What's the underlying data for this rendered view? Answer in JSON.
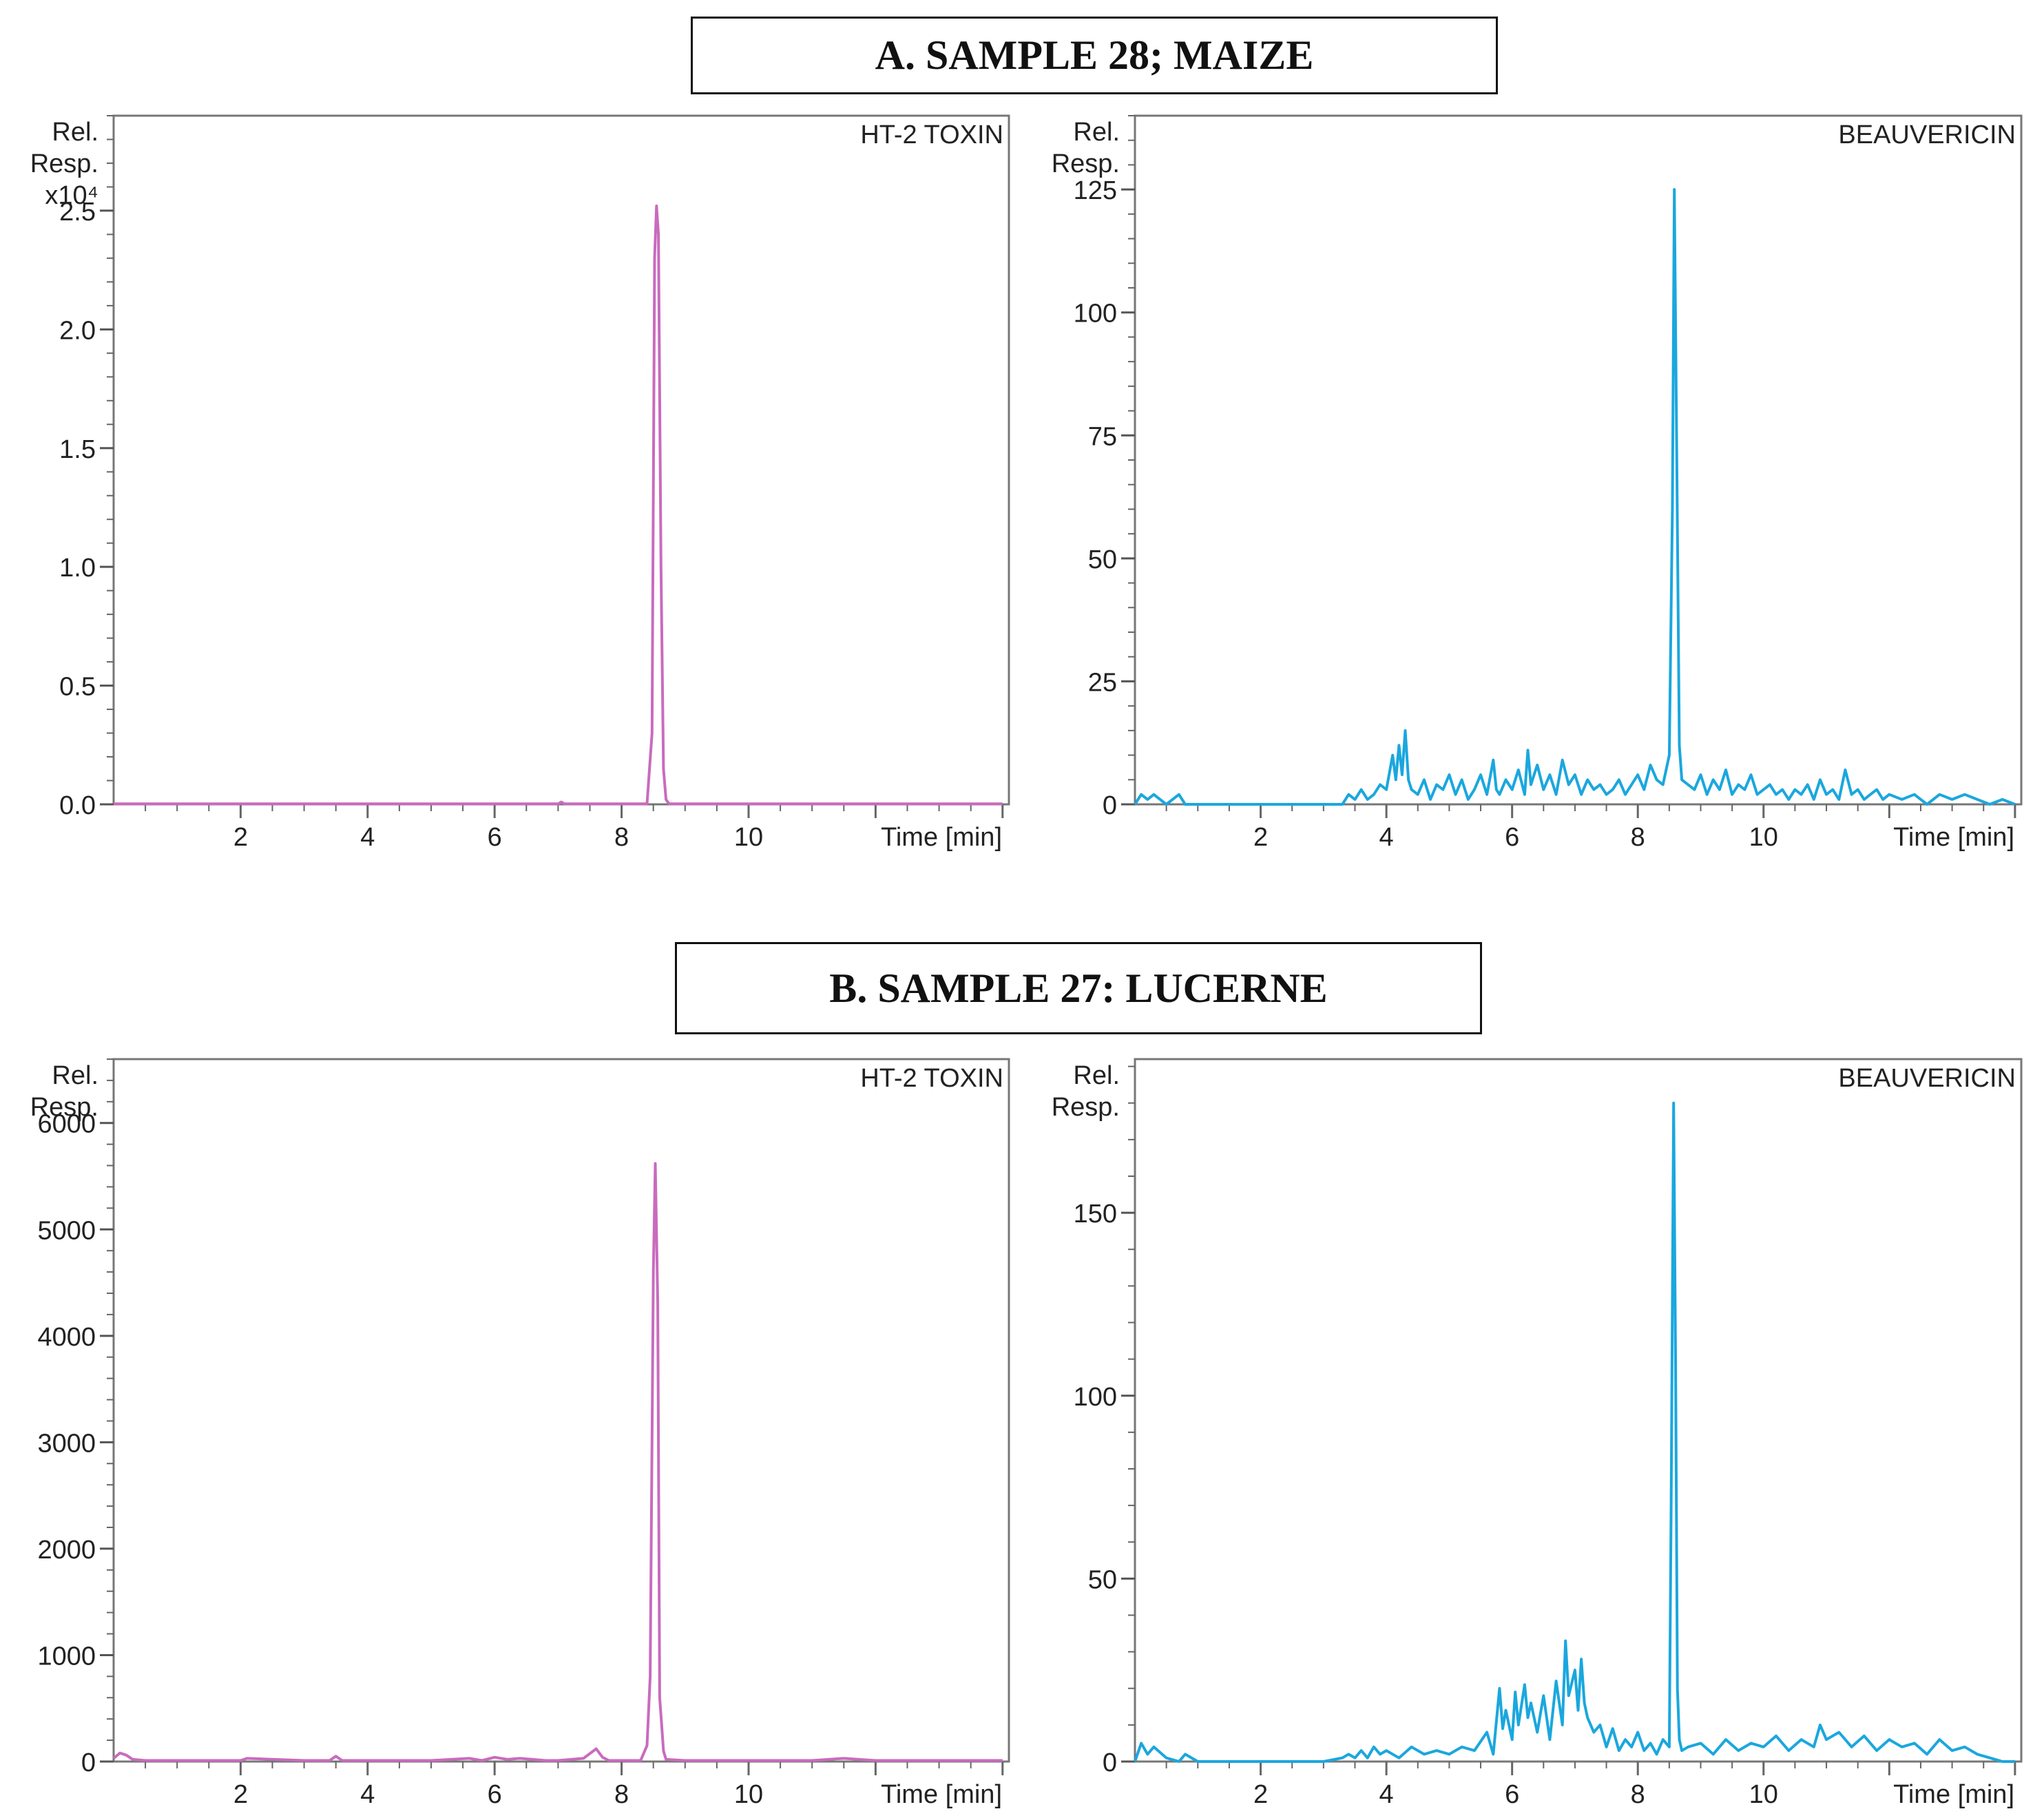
{
  "sections": [
    {
      "title": "A. SAMPLE 28; MAIZE"
    },
    {
      "title": "B. SAMPLE 27: LUCERNE"
    }
  ],
  "chart_data": [
    {
      "type": "line",
      "section": "A",
      "title": "HT-2 TOXIN",
      "ylabel_lines": [
        "Rel.",
        "Resp.",
        "x10⁴"
      ],
      "xlabel": "Time [min]",
      "xlim": [
        0,
        14.1
      ],
      "ylim": [
        0,
        2.9
      ],
      "xticks": [
        2,
        4,
        6,
        8,
        10
      ],
      "yticks": [
        0.0,
        0.5,
        1.0,
        1.5,
        2.0,
        2.5
      ],
      "ytick_labels": [
        "0.0",
        "0.5",
        "1.0",
        "1.5",
        "2.0",
        "2.5"
      ],
      "grid": false,
      "color": "#c96bbd",
      "series": [
        {
          "x": [
            0,
            1,
            2,
            3,
            4,
            5,
            6,
            7,
            7.05,
            7.1,
            8,
            8.4,
            8.48,
            8.52,
            8.55,
            8.58,
            8.62,
            8.66,
            8.7,
            8.75,
            9,
            10,
            11,
            12,
            13,
            14
          ],
          "y": [
            0.002,
            0.002,
            0.002,
            0.002,
            0.002,
            0.002,
            0.002,
            0.002,
            0.01,
            0.002,
            0.002,
            0.002,
            0.3,
            2.3,
            2.52,
            2.4,
            1.0,
            0.15,
            0.02,
            0.002,
            0.002,
            0.002,
            0.002,
            0.002,
            0.002,
            0.002
          ]
        }
      ]
    },
    {
      "type": "line",
      "section": "A",
      "title": "BEAUVERICIN",
      "ylabel_lines": [
        "Rel.",
        "Resp."
      ],
      "xlabel": "Time [min]",
      "xlim": [
        0,
        14.1
      ],
      "ylim": [
        0,
        140
      ],
      "xticks": [
        2,
        4,
        6,
        8,
        10
      ],
      "yticks": [
        0,
        25,
        50,
        75,
        100,
        125
      ],
      "ytick_labels": [
        "0",
        "25",
        "50",
        "75",
        "100",
        "125"
      ],
      "grid": false,
      "color": "#1aa7de",
      "series": [
        {
          "x": [
            0,
            0.1,
            0.2,
            0.3,
            0.5,
            0.7,
            0.8,
            1.0,
            2.0,
            3.0,
            3.3,
            3.4,
            3.5,
            3.6,
            3.7,
            3.8,
            3.9,
            4.0,
            4.1,
            4.15,
            4.2,
            4.25,
            4.3,
            4.35,
            4.4,
            4.5,
            4.6,
            4.7,
            4.8,
            4.9,
            5.0,
            5.1,
            5.2,
            5.3,
            5.4,
            5.5,
            5.6,
            5.7,
            5.75,
            5.8,
            5.9,
            6.0,
            6.1,
            6.2,
            6.25,
            6.3,
            6.4,
            6.5,
            6.6,
            6.7,
            6.8,
            6.9,
            7.0,
            7.1,
            7.2,
            7.3,
            7.4,
            7.5,
            7.6,
            7.7,
            7.8,
            7.9,
            8.0,
            8.1,
            8.2,
            8.3,
            8.4,
            8.5,
            8.55,
            8.58,
            8.62,
            8.66,
            8.7,
            8.8,
            8.9,
            9.0,
            9.1,
            9.2,
            9.3,
            9.4,
            9.5,
            9.6,
            9.7,
            9.8,
            9.9,
            10.0,
            10.1,
            10.2,
            10.3,
            10.4,
            10.5,
            10.6,
            10.7,
            10.8,
            10.9,
            11.0,
            11.1,
            11.2,
            11.3,
            11.4,
            11.5,
            11.6,
            11.7,
            11.8,
            11.9,
            12.0,
            12.2,
            12.4,
            12.6,
            12.8,
            13.0,
            13.2,
            13.4,
            13.6,
            13.8,
            14.0
          ],
          "y": [
            0,
            2,
            1,
            2,
            0,
            2,
            0,
            0,
            0,
            0,
            0,
            2,
            1,
            3,
            1,
            2,
            4,
            3,
            10,
            5,
            12,
            6,
            15,
            5,
            3,
            2,
            5,
            1,
            4,
            3,
            6,
            2,
            5,
            1,
            3,
            6,
            2,
            9,
            3,
            2,
            5,
            3,
            7,
            2,
            11,
            4,
            8,
            3,
            6,
            2,
            9,
            4,
            6,
            2,
            5,
            3,
            4,
            2,
            3,
            5,
            2,
            4,
            6,
            3,
            8,
            5,
            4,
            10,
            60,
            125,
            70,
            12,
            5,
            4,
            3,
            6,
            2,
            5,
            3,
            7,
            2,
            4,
            3,
            6,
            2,
            3,
            4,
            2,
            3,
            1,
            3,
            2,
            4,
            1,
            5,
            2,
            3,
            1,
            7,
            2,
            3,
            1,
            2,
            3,
            1,
            2,
            1,
            2,
            0,
            2,
            1,
            2,
            1,
            0,
            1,
            0
          ]
        }
      ]
    },
    {
      "type": "line",
      "section": "B",
      "title": "HT-2 TOXIN",
      "ylabel_lines": [
        "Rel.",
        "Resp."
      ],
      "xlabel": "Time [min]",
      "xlim": [
        0,
        14.1
      ],
      "ylim": [
        0,
        6600
      ],
      "xticks": [
        2,
        4,
        6,
        8,
        10
      ],
      "yticks": [
        0,
        1000,
        2000,
        3000,
        4000,
        5000,
        6000
      ],
      "ytick_labels": [
        "0",
        "1000",
        "2000",
        "3000",
        "4000",
        "5000",
        "6000"
      ],
      "grid": false,
      "color": "#c96bbd",
      "series": [
        {
          "x": [
            0,
            0.1,
            0.2,
            0.3,
            0.5,
            1.0,
            2.0,
            2.1,
            3.0,
            3.4,
            3.5,
            3.6,
            4.0,
            5.0,
            5.6,
            5.8,
            6.0,
            6.2,
            6.4,
            6.6,
            6.8,
            7.0,
            7.4,
            7.6,
            7.7,
            7.8,
            8.0,
            8.3,
            8.4,
            8.45,
            8.5,
            8.53,
            8.57,
            8.6,
            8.63,
            8.66,
            8.7,
            9.0,
            10.0,
            11.0,
            11.5,
            12.0,
            13.0,
            14.0
          ],
          "y": [
            30,
            80,
            60,
            20,
            10,
            10,
            10,
            30,
            10,
            10,
            50,
            10,
            10,
            10,
            30,
            10,
            40,
            20,
            30,
            20,
            10,
            10,
            30,
            120,
            40,
            10,
            10,
            10,
            150,
            800,
            4600,
            5620,
            4300,
            600,
            350,
            100,
            20,
            10,
            10,
            10,
            30,
            10,
            10,
            10
          ]
        }
      ]
    },
    {
      "type": "line",
      "section": "B",
      "title": "BEAUVERICIN",
      "ylabel_lines": [
        "Rel.",
        "Resp."
      ],
      "xlabel": "Time [min]",
      "xlim": [
        0,
        14.1
      ],
      "ylim": [
        0,
        192
      ],
      "xticks": [
        2,
        4,
        6,
        8,
        10
      ],
      "yticks": [
        0,
        50,
        100,
        150
      ],
      "ytick_labels": [
        "0",
        "50",
        "100",
        "150"
      ],
      "grid": false,
      "color": "#1aa7de",
      "series": [
        {
          "x": [
            0,
            0.1,
            0.2,
            0.3,
            0.5,
            0.7,
            0.8,
            1.0,
            2.0,
            3.0,
            3.3,
            3.4,
            3.5,
            3.6,
            3.7,
            3.8,
            3.9,
            4.0,
            4.2,
            4.4,
            4.6,
            4.8,
            5.0,
            5.2,
            5.4,
            5.6,
            5.7,
            5.8,
            5.85,
            5.9,
            6.0,
            6.05,
            6.1,
            6.2,
            6.25,
            6.3,
            6.4,
            6.5,
            6.6,
            6.7,
            6.8,
            6.85,
            6.9,
            7.0,
            7.05,
            7.1,
            7.15,
            7.2,
            7.3,
            7.4,
            7.5,
            7.6,
            7.7,
            7.8,
            7.9,
            8.0,
            8.1,
            8.2,
            8.3,
            8.4,
            8.5,
            8.53,
            8.57,
            8.6,
            8.63,
            8.66,
            8.7,
            8.8,
            9.0,
            9.2,
            9.4,
            9.6,
            9.8,
            10.0,
            10.2,
            10.4,
            10.6,
            10.8,
            10.9,
            11.0,
            11.2,
            11.4,
            11.6,
            11.8,
            12.0,
            12.2,
            12.4,
            12.6,
            12.8,
            13.0,
            13.2,
            13.4,
            13.6,
            13.8,
            14.0
          ],
          "y": [
            0,
            5,
            2,
            4,
            1,
            0,
            2,
            0,
            0,
            0,
            1,
            2,
            1,
            3,
            1,
            4,
            2,
            3,
            1,
            4,
            2,
            3,
            2,
            4,
            3,
            8,
            2,
            20,
            9,
            14,
            6,
            19,
            10,
            21,
            12,
            16,
            8,
            18,
            6,
            22,
            10,
            33,
            18,
            25,
            14,
            28,
            16,
            12,
            8,
            10,
            4,
            9,
            3,
            6,
            4,
            8,
            3,
            5,
            2,
            6,
            4,
            70,
            180,
            110,
            20,
            6,
            3,
            4,
            5,
            2,
            6,
            3,
            5,
            4,
            7,
            3,
            6,
            4,
            10,
            6,
            8,
            4,
            7,
            3,
            6,
            4,
            5,
            2,
            6,
            3,
            4,
            2,
            1,
            0,
            0
          ]
        }
      ]
    }
  ]
}
